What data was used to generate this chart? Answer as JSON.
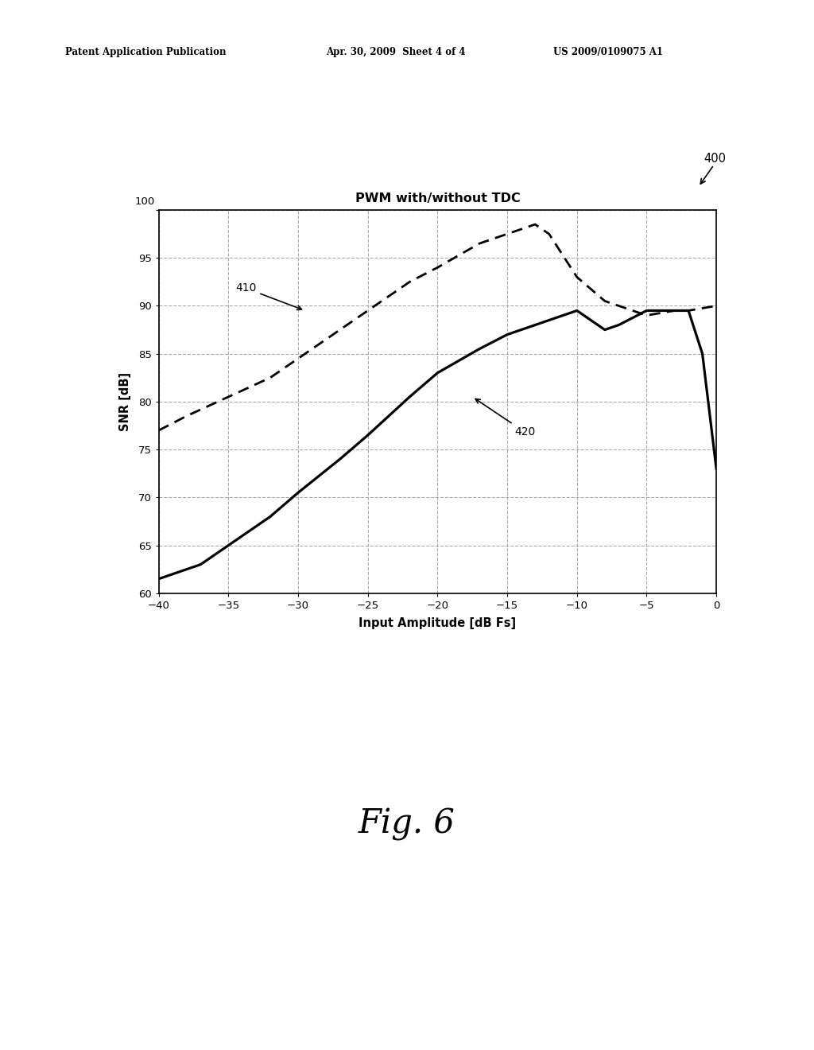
{
  "title": "PWM with/without TDC",
  "xlabel": "Input Amplitude [dB Fs]",
  "ylabel": "SNR [dB]",
  "xlim": [
    -40,
    0
  ],
  "ylim": [
    60,
    100
  ],
  "xticks": [
    -40,
    -35,
    -30,
    -25,
    -20,
    -15,
    -10,
    -5,
    0
  ],
  "yticks": [
    60,
    65,
    70,
    75,
    80,
    85,
    90,
    95,
    100
  ],
  "line410_x": [
    -40,
    -38,
    -35,
    -32,
    -30,
    -27,
    -25,
    -22,
    -20,
    -17,
    -15,
    -13,
    -12,
    -10,
    -8,
    -5,
    -3,
    -2,
    0
  ],
  "line410_y": [
    77.0,
    78.5,
    80.5,
    82.5,
    84.5,
    87.5,
    89.5,
    92.5,
    94.0,
    96.5,
    97.5,
    98.5,
    97.5,
    93.0,
    90.5,
    89.0,
    89.5,
    89.5,
    90.0
  ],
  "line420_x": [
    -40,
    -37,
    -35,
    -32,
    -30,
    -27,
    -25,
    -22,
    -20,
    -17,
    -15,
    -12,
    -10,
    -9,
    -8,
    -7,
    -5,
    -3,
    -2,
    -1,
    0
  ],
  "line420_y": [
    61.5,
    63.0,
    65.0,
    68.0,
    70.5,
    74.0,
    76.5,
    80.5,
    83.0,
    85.5,
    87.0,
    88.5,
    89.5,
    88.5,
    87.5,
    88.0,
    89.5,
    89.5,
    89.5,
    85.0,
    73.0
  ],
  "label410": "410",
  "label420": "420",
  "annotation400_text": "400",
  "header_left": "Patent Application Publication",
  "header_mid": "Apr. 30, 2009  Sheet 4 of 4",
  "header_right": "US 2009/0109075 A1",
  "fig_label": "Fig. 6",
  "background_color": "#ffffff",
  "line_color": "#000000",
  "grid_color": "#aaaaaa"
}
